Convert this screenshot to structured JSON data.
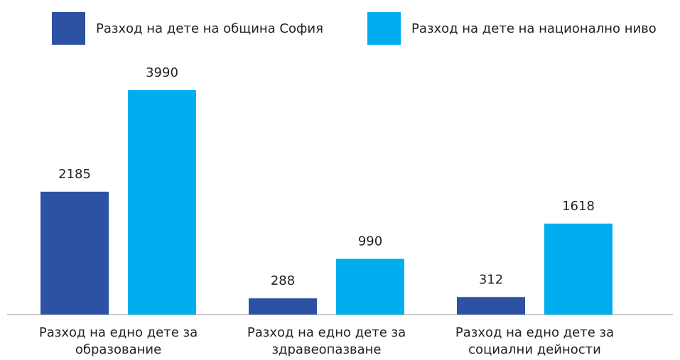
{
  "chart_data": {
    "type": "bar",
    "categories": [
      "Разход на едно дете за образование",
      "Разход на едно дете за здравеопазване",
      "Разход на едно дете за социални дейности"
    ],
    "series": [
      {
        "name": "Разход на дете на община София",
        "color": "#2d51a3",
        "values": [
          2185,
          288,
          312
        ]
      },
      {
        "name": "Разход на дете на национално ниво",
        "color": "#00aeef",
        "values": [
          3990,
          990,
          1618
        ]
      }
    ],
    "legend": "top"
  }
}
